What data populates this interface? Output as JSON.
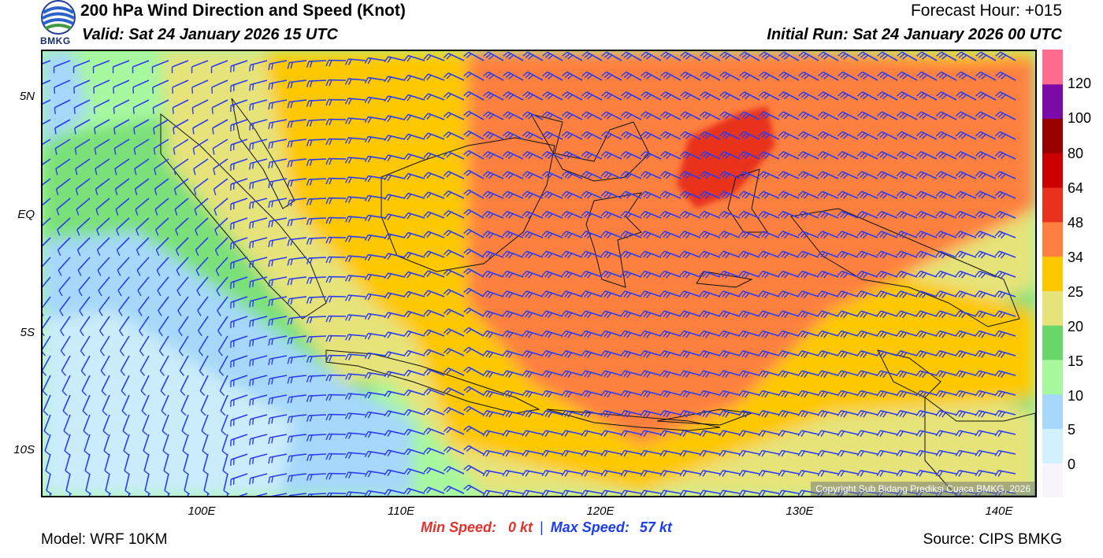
{
  "header": {
    "title": "200 hPa Wind Direction and Speed (Knot)",
    "valid": "Valid: Sat 24 January 2026 15 UTC",
    "forecast_hour": "Forecast Hour: +015",
    "initial_run": "Initial Run: Sat 24 January 2026 00 UTC",
    "logo_text": "BMKG"
  },
  "map": {
    "lat_labels": [
      "5N",
      "EQ",
      "5S",
      "10S"
    ],
    "lon_labels": [
      "100E",
      "110E",
      "120E",
      "130E",
      "140E"
    ],
    "copyright": "Copyright Sub Bidang Prediksi Cuaca BMKG, 2026",
    "barb_color": "#2b3cf0"
  },
  "colorbar": {
    "labels": [
      "120",
      "100",
      "80",
      "64",
      "48",
      "34",
      "25",
      "20",
      "15",
      "10",
      "5",
      "0"
    ],
    "colors": [
      "#f9f4fb",
      "#d3f1fc",
      "#a5d8fb",
      "#a8f8a0",
      "#6ad66a",
      "#e6e37a",
      "#fec800",
      "#fe8040",
      "#e8321e",
      "#cc0000",
      "#990000",
      "#7b0aa7",
      "#ff6b8d"
    ]
  },
  "footer": {
    "min_label": "Min Speed:",
    "min_value": "0 kt",
    "separator": "|",
    "max_label": "Max Speed:",
    "max_value": "57 kt",
    "model": "Model: WRF 10KM",
    "source": "Source: CIPS BMKG"
  }
}
